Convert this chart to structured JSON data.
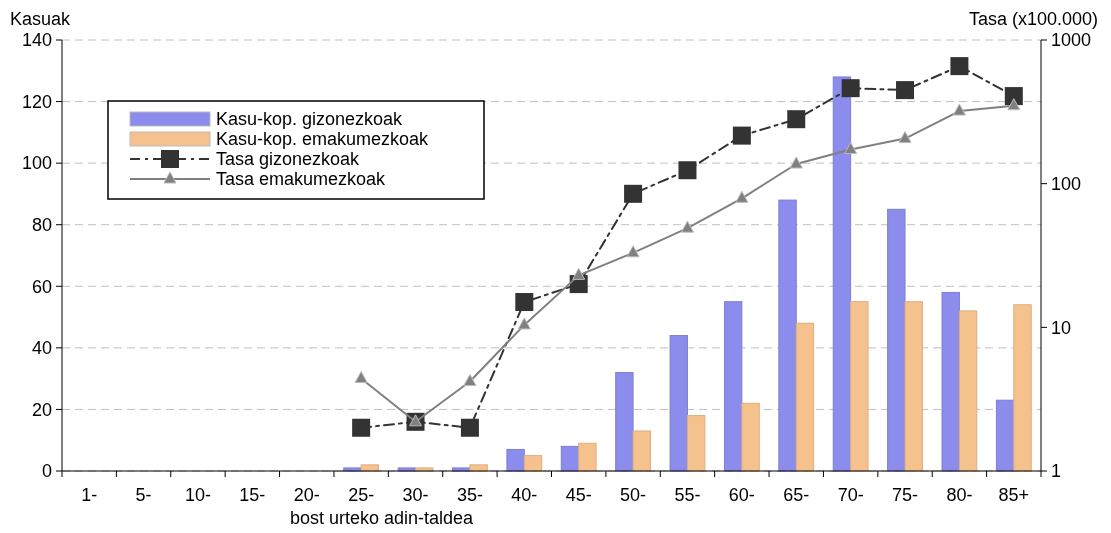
{
  "chart_data": {
    "type": "bar",
    "xlabel": "bost urteko adin-taldea",
    "ylabel": "Kasuak",
    "y2label": "Tasa (x100.000)",
    "categories": [
      "1-",
      "5-",
      "10-",
      "15-",
      "20-",
      "25-",
      "30-",
      "35-",
      "40-",
      "45-",
      "50-",
      "55-",
      "60-",
      "65-",
      "70-",
      "75-",
      "80-",
      "85+"
    ],
    "series": [
      {
        "name": "Kasu-kop. gizonezkoak",
        "color": "#8c8cec",
        "values": [
          0,
          0,
          0,
          0,
          0,
          1,
          1,
          1,
          7,
          8,
          32,
          44,
          55,
          88,
          128,
          85,
          58,
          23
        ]
      },
      {
        "name": "Kasu-kop. emakumezkoak",
        "color": "#f5c28e",
        "values": [
          0,
          0,
          0,
          0,
          0,
          2,
          1,
          2,
          5,
          9,
          13,
          18,
          22,
          48,
          55,
          55,
          52,
          54
        ]
      },
      {
        "name": "Tasa gizonezkoak",
        "type": "line",
        "axis": "y2",
        "color": "#333333",
        "marker": "square",
        "line_style": "dashed",
        "values": [
          null,
          null,
          null,
          null,
          null,
          2,
          2.2,
          2,
          15,
          20,
          85,
          124,
          216,
          281,
          462,
          448,
          658,
          407
        ]
      },
      {
        "name": "Tasa emakumezkoak",
        "type": "line",
        "axis": "y2",
        "color": "#808080",
        "marker": "triangle",
        "line_style": "solid",
        "values": [
          null,
          null,
          null,
          null,
          null,
          4.4,
          2.2,
          4.2,
          10.4,
          23,
          33,
          49,
          79,
          137,
          173,
          206,
          320,
          349
        ]
      }
    ],
    "ylim": [
      0,
      140
    ],
    "yticks": [
      0,
      20,
      40,
      60,
      80,
      100,
      120,
      140
    ],
    "y2lim": [
      1,
      1000
    ],
    "y2ticks": [
      1,
      10,
      100,
      1000
    ],
    "log": "y2",
    "grid": "y",
    "legend": "top left"
  }
}
